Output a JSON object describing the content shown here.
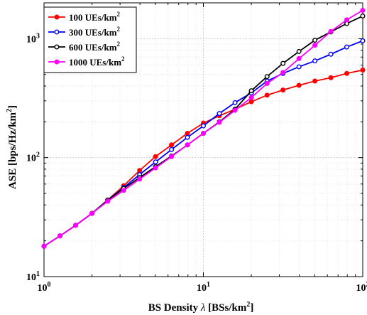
{
  "chart_data": {
    "type": "line",
    "xscale": "log",
    "yscale": "log",
    "xlim": [
      1,
      100
    ],
    "ylim": [
      10,
      2000
    ],
    "grid": true,
    "legend_position": "top-left",
    "xlabel": {
      "prefix": "BS Density ",
      "symbol": "λ",
      "open": " [BSs/km",
      "sup": "2",
      "close": "]"
    },
    "ylabel": {
      "main": "ASE [bps/Hz/km",
      "sup": "2",
      "close": "]"
    },
    "xtick_labels": [
      {
        "base": "10",
        "exp": "0",
        "value": 1
      },
      {
        "base": "10",
        "exp": "1",
        "value": 10
      },
      {
        "base": "10",
        "exp": "2",
        "value": 100
      }
    ],
    "ytick_labels": [
      {
        "base": "10",
        "exp": "1",
        "value": 10
      },
      {
        "base": "10",
        "exp": "2",
        "value": 100
      },
      {
        "base": "10",
        "exp": "3",
        "value": 1000
      }
    ],
    "x": [
      1,
      1.26,
      1.58,
      2,
      2.51,
      3.16,
      3.98,
      5.01,
      6.31,
      7.94,
      10,
      12.6,
      15.8,
      20,
      25.1,
      31.6,
      39.8,
      50.1,
      63.1,
      79.4,
      100
    ],
    "series": [
      {
        "name": "100 UEs/km",
        "sup": "2",
        "color": "#ff0000",
        "values": [
          18,
          22,
          27,
          34,
          44,
          58,
          78,
          102,
          128,
          160,
          195,
          225,
          255,
          295,
          335,
          370,
          405,
          440,
          470,
          510,
          545
        ]
      },
      {
        "name": "300 UEs/km",
        "sup": "2",
        "color": "#0000ff",
        "values": [
          18,
          22,
          27,
          34,
          44,
          56,
          72,
          92,
          117,
          148,
          185,
          235,
          290,
          350,
          440,
          510,
          580,
          650,
          740,
          850,
          960
        ]
      },
      {
        "name": "600 UEs/km",
        "sup": "2",
        "color": "#000000",
        "values": [
          18,
          22,
          27,
          34,
          44,
          55,
          68,
          84,
          103,
          128,
          160,
          200,
          255,
          365,
          480,
          620,
          780,
          970,
          1140,
          1340,
          1550
        ]
      },
      {
        "name": "1000 UEs/km",
        "sup": "2",
        "color": "#ff00ff",
        "values": [
          18,
          22,
          27,
          34,
          43,
          53,
          66,
          82,
          102,
          128,
          160,
          198,
          250,
          320,
          420,
          520,
          680,
          880,
          1150,
          1440,
          1730
        ]
      }
    ]
  }
}
